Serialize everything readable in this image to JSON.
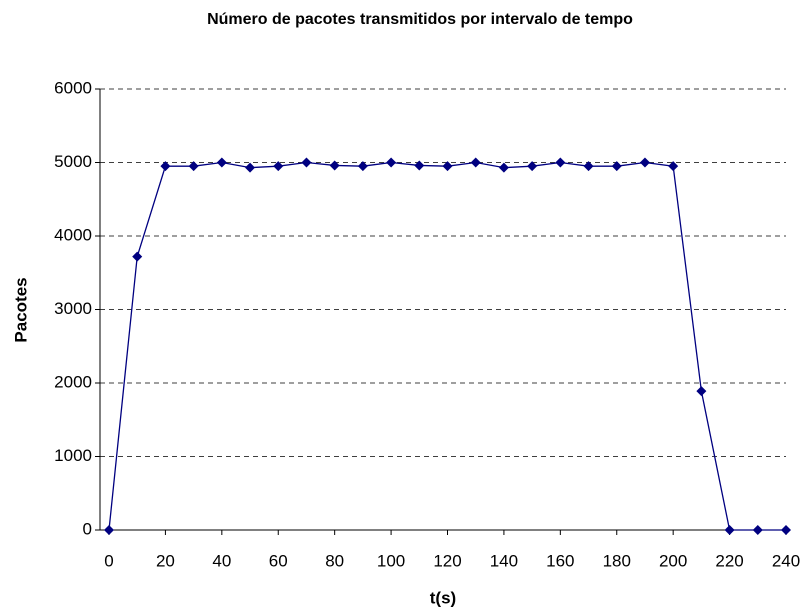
{
  "chart_data": {
    "type": "line",
    "title": "Número de pacotes transmitidos por intervalo de tempo",
    "xlabel": "t(s)",
    "ylabel": "Pacotes",
    "x": [
      0,
      10,
      20,
      30,
      40,
      50,
      60,
      70,
      80,
      90,
      100,
      110,
      120,
      130,
      140,
      150,
      160,
      170,
      180,
      190,
      200,
      210,
      220,
      230,
      240
    ],
    "series": [
      {
        "name": "Pacotes",
        "color": "#000080",
        "values": [
          0,
          3720,
          4950,
          4950,
          5000,
          4930,
          4950,
          5000,
          4960,
          4950,
          5000,
          4960,
          4950,
          5000,
          4930,
          4950,
          5000,
          4950,
          4950,
          5000,
          4950,
          1890,
          0,
          0,
          0
        ]
      }
    ],
    "xlim": [
      0,
      240
    ],
    "xticks": [
      0,
      20,
      40,
      60,
      80,
      100,
      120,
      140,
      160,
      180,
      200,
      220,
      240
    ],
    "ylim": [
      0,
      6000
    ],
    "yticks": [
      0,
      1000,
      2000,
      3000,
      4000,
      5000,
      6000
    ],
    "grid": true
  }
}
